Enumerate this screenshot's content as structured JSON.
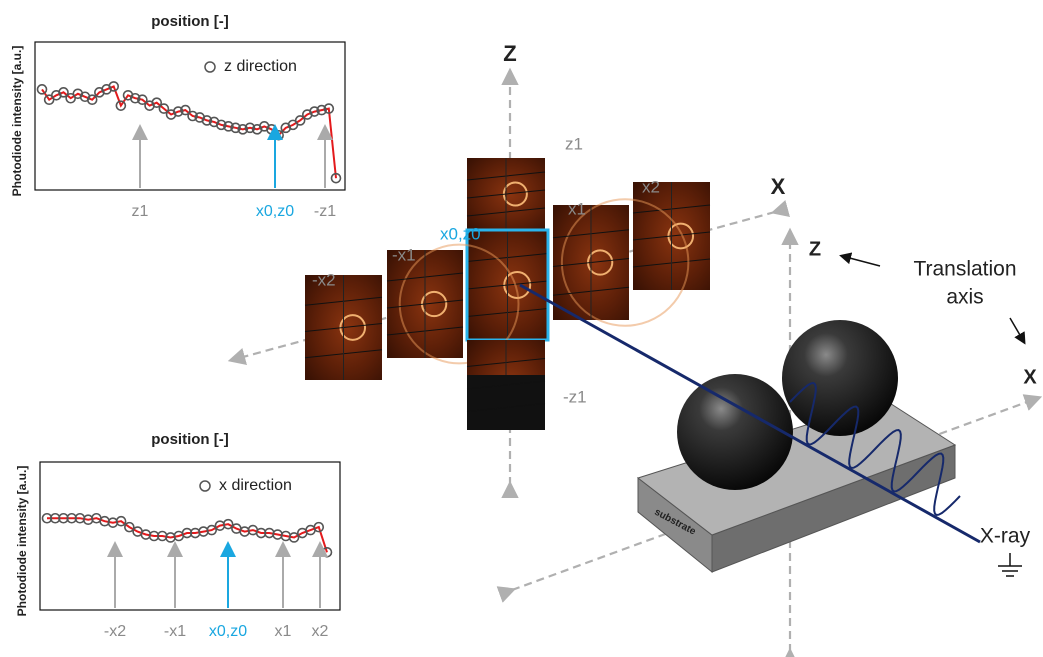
{
  "plots": [
    {
      "title": "position [-]",
      "y_label": "Photodiode intensity [a.u.]",
      "legend": "z direction",
      "ylim": [
        0,
        1
      ],
      "values": [
        0.68,
        0.61,
        0.64,
        0.66,
        0.62,
        0.65,
        0.63,
        0.61,
        0.66,
        0.68,
        0.7,
        0.57,
        0.64,
        0.62,
        0.61,
        0.57,
        0.59,
        0.55,
        0.51,
        0.53,
        0.54,
        0.5,
        0.49,
        0.47,
        0.46,
        0.44,
        0.43,
        0.42,
        0.41,
        0.42,
        0.41,
        0.43,
        0.41,
        0.37,
        0.42,
        0.44,
        0.47,
        0.51,
        0.53,
        0.54,
        0.55,
        0.08
      ],
      "arrows": [
        "z1",
        "x0,z0",
        "-z1"
      ]
    },
    {
      "title": "position [-]",
      "y_label": "Photodiode intensity [a.u.]",
      "legend": "x direction",
      "ylim": [
        0,
        1
      ],
      "values": [
        0.62,
        0.62,
        0.62,
        0.62,
        0.62,
        0.61,
        0.62,
        0.6,
        0.59,
        0.6,
        0.56,
        0.53,
        0.51,
        0.5,
        0.5,
        0.49,
        0.5,
        0.52,
        0.52,
        0.53,
        0.54,
        0.57,
        0.58,
        0.55,
        0.53,
        0.54,
        0.52,
        0.52,
        0.51,
        0.5,
        0.49,
        0.52,
        0.54,
        0.56,
        0.39
      ],
      "arrows": [
        "-x2",
        "-x1",
        "x0,z0",
        "x1",
        "x2"
      ]
    }
  ],
  "diagram": {
    "axis_z": "Z",
    "axis_x": "X",
    "tiles": [
      "z1",
      "x2",
      "x1",
      "x0,z0",
      "-x1",
      "-x2",
      "-z1"
    ],
    "stage_z": "Z",
    "stage_x": "X",
    "translation": [
      "Translation",
      "axis"
    ],
    "xray": "X-ray",
    "substrate": "substrate"
  }
}
